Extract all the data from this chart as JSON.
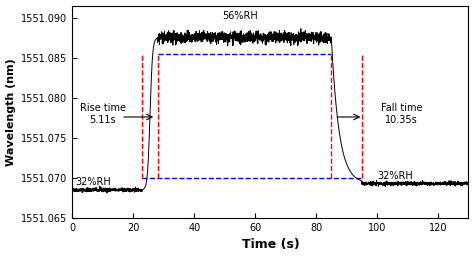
{
  "xlabel": "Time (s)",
  "ylabel": "Wavelength (nm)",
  "xlim": [
    0,
    130
  ],
  "ylim": [
    1551.065,
    1551.0915
  ],
  "yticks": [
    1551.065,
    1551.07,
    1551.075,
    1551.08,
    1551.085,
    1551.09
  ],
  "xticks": [
    0,
    20,
    40,
    60,
    80,
    100,
    120
  ],
  "blue_hline_low": 1551.07,
  "blue_hline_high": 1551.0855,
  "red_vline1": 23,
  "red_vline2": 28,
  "red_vline3": 85,
  "red_vline4": 95,
  "baseline": 1551.0685,
  "plateau": 1551.0875,
  "settle": 1551.0693,
  "rise_start": 23,
  "rise_end": 28,
  "fall_start": 85,
  "fall_end": 95,
  "noise_amplitude_plateau": 0.00035,
  "noise_amplitude_base": 0.00012,
  "noise_seed": 42,
  "line_color": "black",
  "red_dashed_color": "red",
  "blue_dashed_color": "blue"
}
